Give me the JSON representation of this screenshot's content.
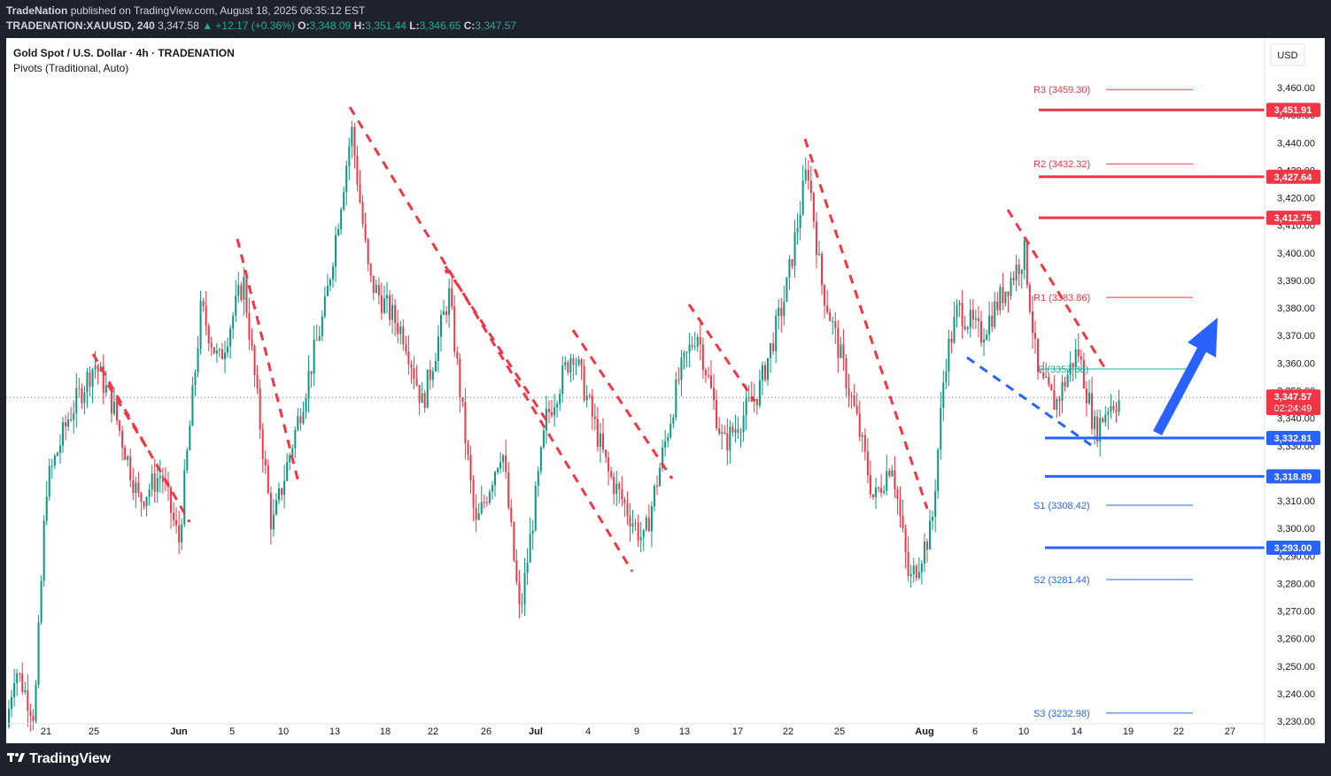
{
  "header": {
    "publisher": "TradeNation",
    "published_text": "published on TradingView.com, August 18, 2025 06:35:12 EST",
    "symbol": "TRADENATION:XAUUSD, 240",
    "last": "3,347.58",
    "change": "▲ +12.17 (+0.36%)",
    "o_label": "O:",
    "o_val": "3,348.09",
    "h_label": "H:",
    "h_val": "3,351.44",
    "l_label": "L:",
    "l_val": "3,346.65",
    "c_label": "C:",
    "c_val": "3,347.57"
  },
  "legend": {
    "title": "Gold Spot / U.S. Dollar · 4h · TRADENATION",
    "indicator": "Pivots (Traditional, Auto)"
  },
  "currency_button": "USD",
  "footer": {
    "logo_text": "TradingView"
  },
  "colors": {
    "up": "#089981",
    "down": "#f23645",
    "resistance": "#f23645",
    "support": "#2962ff",
    "arrow": "#2962ff",
    "wick": "#131722"
  },
  "chart_data": {
    "type": "candlestick",
    "y_range": [
      3222,
      3478
    ],
    "y_ticks": [
      "3,460.00",
      "3,450.00",
      "3,440.00",
      "3,430.00",
      "3,420.00",
      "3,410.00",
      "3,400.00",
      "3,390.00",
      "3,380.00",
      "3,370.00",
      "3,360.00",
      "3,350.00",
      "3,340.00",
      "3,330.00",
      "3,320.00",
      "3,310.00",
      "3,300.00",
      "3,290.00",
      "3,280.00",
      "3,270.00",
      "3,260.00",
      "3,250.00",
      "3,240.00",
      "3,230.00"
    ],
    "x_labels": [
      "21",
      "25",
      "Jun",
      "5",
      "10",
      "13",
      "18",
      "22",
      "26",
      "Jul",
      "4",
      "9",
      "13",
      "17",
      "22",
      "25",
      "Aug",
      "6",
      "10",
      "14",
      "19",
      "22",
      "27"
    ],
    "price_badges": [
      {
        "label": "3,451.91",
        "price": 3451.91,
        "kind": "resistance"
      },
      {
        "label": "3,427.64",
        "price": 3427.64,
        "kind": "resistance"
      },
      {
        "label": "3,412.75",
        "price": 3412.75,
        "kind": "resistance"
      },
      {
        "label": "3,332.81",
        "price": 3332.81,
        "kind": "support"
      },
      {
        "label": "3,318.89",
        "price": 3318.89,
        "kind": "support"
      },
      {
        "label": "3,293.00",
        "price": 3293.0,
        "kind": "support"
      }
    ],
    "current_price": {
      "label": "3,347.57",
      "countdown": "02:24:49",
      "price": 3347.57
    },
    "pivots": [
      {
        "label": "R3 (3459.30)",
        "price": 3459.3,
        "kind": "resistance"
      },
      {
        "label": "R2 (3432.32)",
        "price": 3432.32,
        "kind": "resistance"
      },
      {
        "label": "R1 (3383.86)",
        "price": 3383.86,
        "kind": "resistance"
      },
      {
        "label": "P (3357.88)",
        "price": 3357.88,
        "kind": "pivot"
      },
      {
        "label": "S1 (3308.42)",
        "price": 3308.42,
        "kind": "support"
      },
      {
        "label": "S2 (3281.44)",
        "price": 3281.44,
        "kind": "support"
      },
      {
        "label": "S3 (3232.98)",
        "price": 3232.98,
        "kind": "support"
      }
    ],
    "anchors": [
      [
        0,
        3228
      ],
      [
        10,
        3250
      ],
      [
        32,
        3232
      ],
      [
        45,
        3315
      ],
      [
        70,
        3340
      ],
      [
        100,
        3360
      ],
      [
        120,
        3345
      ],
      [
        150,
        3310
      ],
      [
        175,
        3320
      ],
      [
        195,
        3295
      ],
      [
        220,
        3380
      ],
      [
        240,
        3360
      ],
      [
        268,
        3390
      ],
      [
        300,
        3300
      ],
      [
        330,
        3340
      ],
      [
        360,
        3380
      ],
      [
        390,
        3445
      ],
      [
        410,
        3390
      ],
      [
        450,
        3370
      ],
      [
        470,
        3345
      ],
      [
        500,
        3385
      ],
      [
        530,
        3300
      ],
      [
        560,
        3330
      ],
      [
        580,
        3268
      ],
      [
        610,
        3340
      ],
      [
        640,
        3365
      ],
      [
        680,
        3320
      ],
      [
        720,
        3295
      ],
      [
        760,
        3355
      ],
      [
        780,
        3372
      ],
      [
        810,
        3330
      ],
      [
        850,
        3350
      ],
      [
        880,
        3385
      ],
      [
        905,
        3432
      ],
      [
        920,
        3390
      ],
      [
        960,
        3340
      ],
      [
        980,
        3310
      ],
      [
        1000,
        3325
      ],
      [
        1020,
        3280
      ],
      [
        1045,
        3300
      ],
      [
        1060,
        3360
      ],
      [
        1075,
        3380
      ],
      [
        1100,
        3370
      ],
      [
        1125,
        3385
      ],
      [
        1150,
        3400
      ],
      [
        1165,
        3355
      ],
      [
        1185,
        3345
      ],
      [
        1210,
        3365
      ],
      [
        1230,
        3335
      ],
      [
        1245,
        3345
      ],
      [
        1260,
        3347
      ]
    ]
  }
}
